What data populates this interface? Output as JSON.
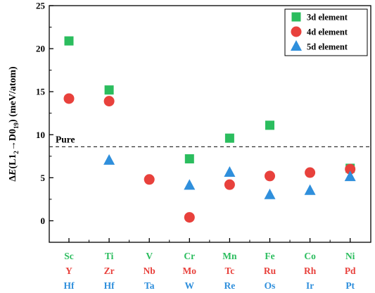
{
  "chart_data": {
    "type": "scatter",
    "ylabel": {
      "prefix": "Δ",
      "italic": "E",
      "open": "(L1",
      "sub1": "2",
      "arrow": "→",
      "mid": "D0",
      "sub2": "19",
      "close": ")",
      "units": " (meV/atom)"
    },
    "ylim": [
      -2.5,
      25
    ],
    "yticks": [
      "0",
      "5",
      "10",
      "15",
      "20",
      "25"
    ],
    "grid": false,
    "legend_position": "top-right",
    "groups": [
      {
        "d3": "Sc",
        "d4": "Y",
        "d5": "Hf"
      },
      {
        "d3": "Ti",
        "d4": "Zr",
        "d5": "Hf"
      },
      {
        "d3": "V",
        "d4": "Nb",
        "d5": "Ta"
      },
      {
        "d3": "Cr",
        "d4": "Mo",
        "d5": "W"
      },
      {
        "d3": "Mn",
        "d4": "Tc",
        "d5": "Re"
      },
      {
        "d3": "Fe",
        "d4": "Ru",
        "d5": "Os"
      },
      {
        "d3": "Co",
        "d4": "Rh",
        "d5": "Ir"
      },
      {
        "d3": "Ni",
        "d4": "Pd",
        "d5": "Pt"
      }
    ],
    "reference_line": {
      "label": "Pure",
      "value": 8.6
    },
    "series": [
      {
        "name": "3d element",
        "marker": "square",
        "color": "#2bbd5e",
        "values": [
          20.9,
          15.2,
          null,
          7.2,
          9.6,
          11.1,
          null,
          6.1
        ]
      },
      {
        "name": "4d element",
        "marker": "circle",
        "color": "#e8413c",
        "values": [
          14.2,
          13.9,
          4.8,
          0.4,
          4.2,
          5.2,
          5.6,
          6.0
        ]
      },
      {
        "name": "5d element",
        "marker": "triangle",
        "color": "#2f8fdc",
        "values": [
          null,
          7.0,
          null,
          4.1,
          5.6,
          3.0,
          3.5,
          5.1
        ]
      }
    ]
  }
}
